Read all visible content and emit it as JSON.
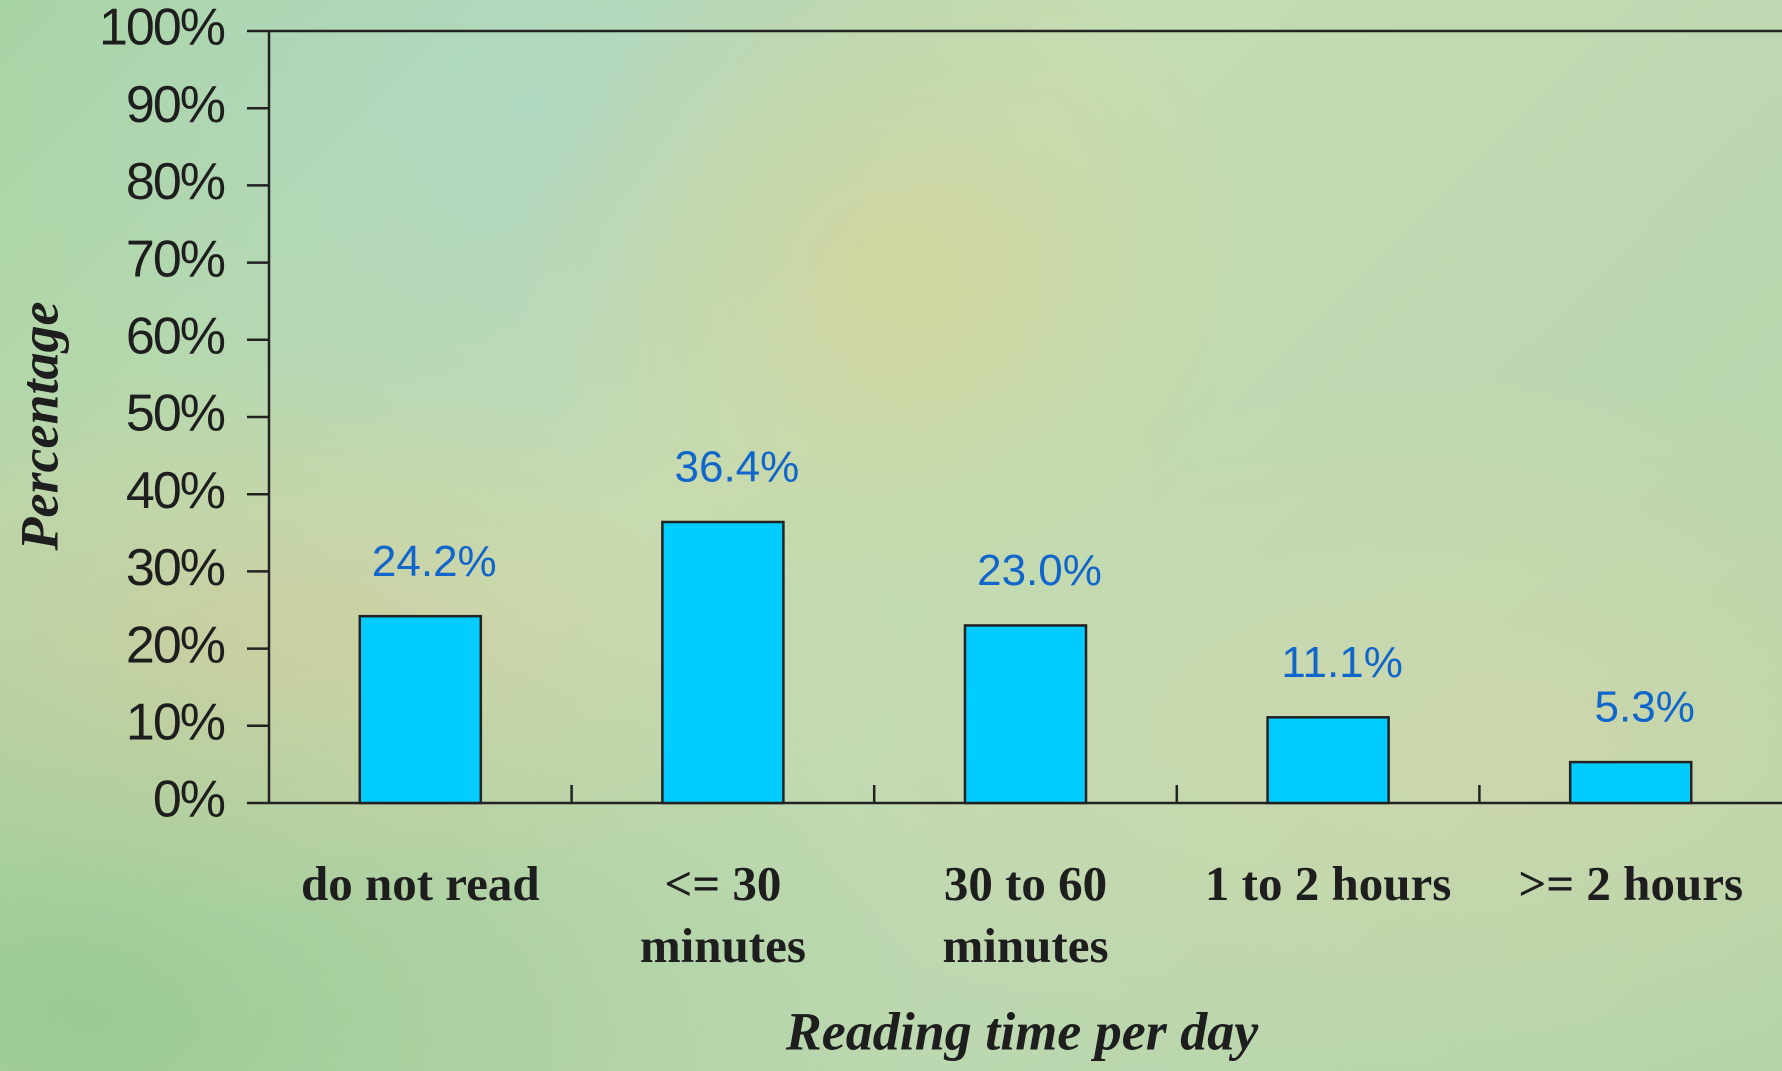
{
  "chart_data": {
    "type": "bar",
    "x_label": "Reading time per day",
    "y_label": "Percentage",
    "categories": [
      "do not read",
      "<= 30 minutes",
      "30 to 60 minutes",
      "1 to 2 hours",
      ">= 2 hours"
    ],
    "values": [
      24.2,
      36.4,
      23.0,
      11.1,
      5.3
    ],
    "value_labels": [
      "24.2%",
      "36.4%",
      "23.0%",
      "11.1%",
      "5.3%"
    ],
    "color": "#00ccff",
    "ylim": [
      0,
      100
    ],
    "yticks": [
      {
        "value": 0,
        "label": "0%"
      },
      {
        "value": 10,
        "label": "10%"
      },
      {
        "value": 20,
        "label": "20%"
      },
      {
        "value": 30,
        "label": "30%"
      },
      {
        "value": 40,
        "label": "40%"
      },
      {
        "value": 50,
        "label": "50%"
      },
      {
        "value": 60,
        "label": "60%"
      },
      {
        "value": 70,
        "label": "70%"
      },
      {
        "value": 80,
        "label": "80%"
      },
      {
        "value": 90,
        "label": "90%"
      },
      {
        "value": 100,
        "label": "100%"
      }
    ],
    "grid": false
  }
}
